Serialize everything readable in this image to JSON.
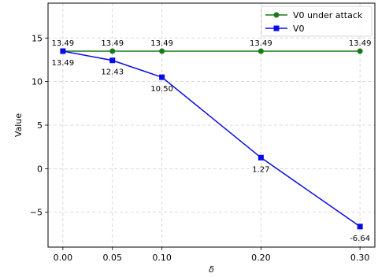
{
  "chart_data": {
    "type": "line",
    "title": "",
    "xlabel": "δ",
    "ylabel": "Value",
    "x": [
      0.0,
      0.05,
      0.1,
      0.2,
      0.3
    ],
    "xlim": [
      -0.015,
      0.315
    ],
    "ylim": [
      -9.0,
      19.0
    ],
    "xticks": [
      0.0,
      0.05,
      0.1,
      0.2,
      0.3
    ],
    "xtick_labels": [
      "0.00",
      "0.05",
      "0.10",
      "0.20",
      "0.30"
    ],
    "yticks": [
      -5,
      0,
      5,
      10,
      15
    ],
    "ytick_labels": [
      "−5",
      "0",
      "5",
      "10",
      "15"
    ],
    "grid": true,
    "legend_position": "top-right",
    "series": [
      {
        "name": "V0 under attack",
        "values": [
          13.49,
          13.49,
          13.49,
          13.49,
          13.49
        ],
        "labels": [
          "13.49",
          "13.49",
          "13.49",
          "13.49",
          "13.49"
        ],
        "label_position": "above",
        "color": "#1a7a1a",
        "marker": "circle"
      },
      {
        "name": "V0",
        "values": [
          13.49,
          12.43,
          10.5,
          1.27,
          -6.64
        ],
        "labels": [
          "13.49",
          "12.43",
          "10.50",
          "1.27",
          "-6.64"
        ],
        "label_position": "below",
        "color": "#0a0ae6",
        "marker": "square"
      }
    ]
  }
}
